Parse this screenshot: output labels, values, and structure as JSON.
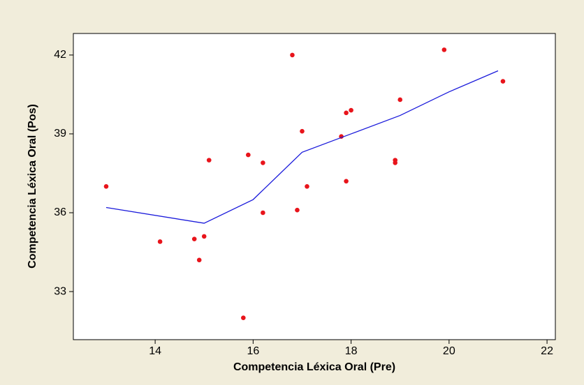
{
  "chart_data": {
    "type": "scatter",
    "x_label": "Competencia Léxica Oral (Pre)",
    "y_label": "Competencia Léxica Oral (Pos)",
    "xlim": [
      12.33,
      22.17
    ],
    "xticks": [
      14,
      16,
      18,
      20,
      22
    ],
    "ylim": [
      31.17,
      42.82
    ],
    "yticks": [
      33,
      36,
      39,
      42
    ],
    "grid": false,
    "series": [
      {
        "style": "markers",
        "color": "#e8141b",
        "x": [
          13.0,
          14.1,
          14.8,
          14.9,
          15.0,
          15.1,
          15.8,
          15.9,
          16.2,
          16.2,
          16.8,
          16.9,
          17.0,
          17.1,
          17.8,
          17.9,
          18.0,
          17.9,
          18.9,
          18.9,
          19.0,
          19.9,
          21.1
        ],
        "values": [
          37.0,
          34.9,
          35.0,
          34.2,
          35.1,
          38.0,
          32.0,
          38.2,
          37.9,
          36.0,
          42.0,
          36.1,
          39.1,
          37.0,
          38.9,
          39.8,
          39.9,
          37.2,
          38.0,
          37.9,
          40.3,
          42.2,
          41.0
        ]
      },
      {
        "style": "line",
        "color": "#1a1adb",
        "x": [
          13,
          15,
          16,
          17,
          18,
          19,
          20,
          21
        ],
        "values": [
          36.2,
          35.6,
          36.5,
          38.3,
          39.0,
          39.7,
          40.6,
          41.4
        ]
      }
    ]
  }
}
